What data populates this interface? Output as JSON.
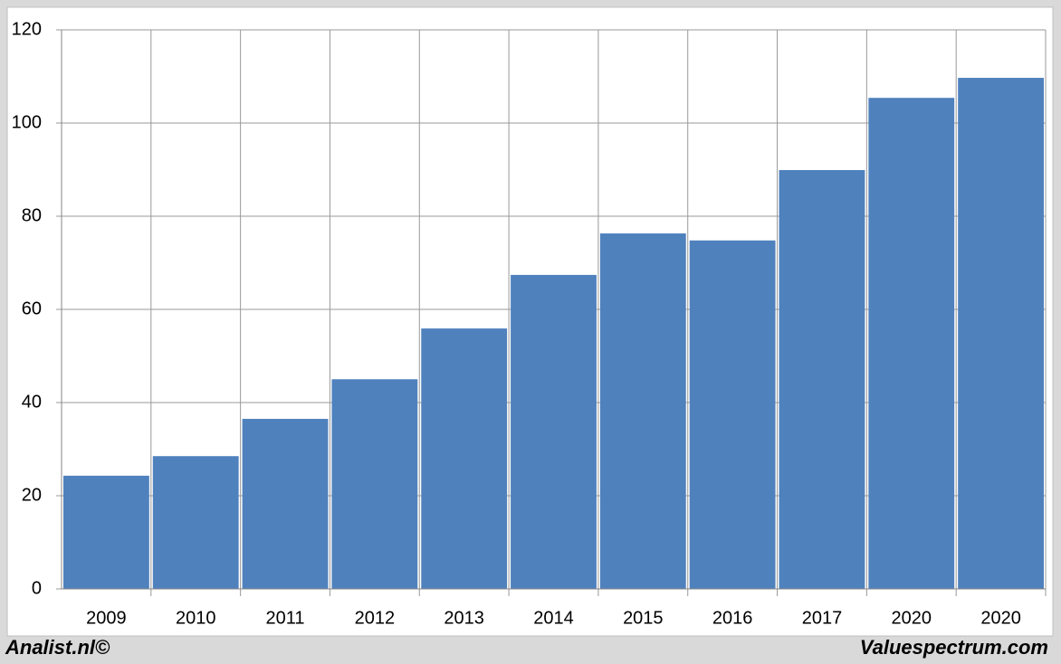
{
  "chart_data": {
    "type": "bar",
    "categories": [
      "2009",
      "2010",
      "2011",
      "2012",
      "2013",
      "2014",
      "2015",
      "2016",
      "2017",
      "2020",
      "2020"
    ],
    "values": [
      24.3,
      28.5,
      36.5,
      45,
      55.9,
      67.4,
      76.3,
      74.8,
      89.9,
      105.4,
      109.7
    ],
    "color": "#4f81bd",
    "ylim": [
      0,
      120
    ],
    "yticks": [
      0,
      20,
      40,
      60,
      80,
      100,
      120
    ],
    "grid": true
  },
  "footer": {
    "left": "Analist.nl©",
    "right": "Valuespectrum.com"
  }
}
